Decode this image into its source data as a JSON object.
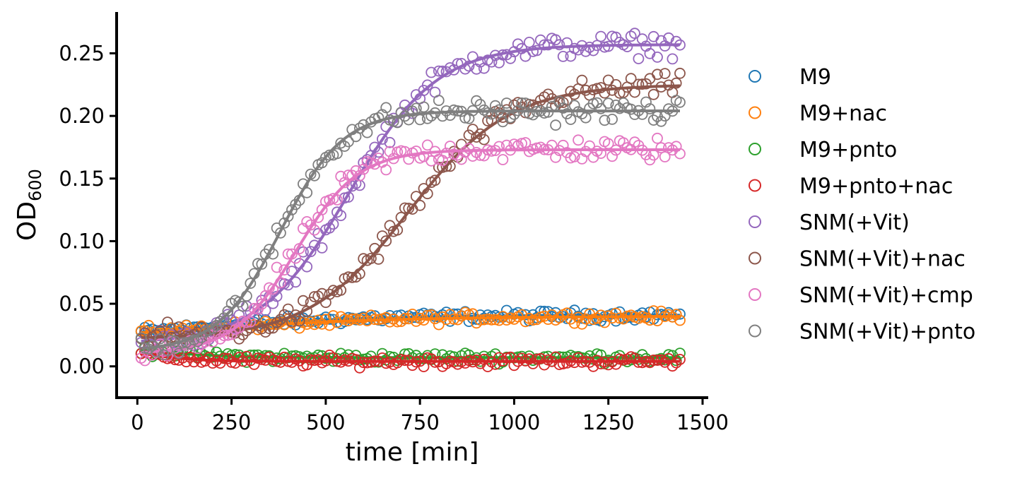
{
  "chart_data": {
    "type": "scatter",
    "xlabel": "time [min]",
    "ylabel_main": "OD",
    "ylabel_sub": "600",
    "xlim": [
      -55,
      1515
    ],
    "ylim": [
      -0.025,
      0.283
    ],
    "xticks": [
      0,
      250,
      500,
      750,
      1000,
      1250,
      1500
    ],
    "xtick_labels": [
      "0",
      "250",
      "500",
      "750",
      "1000",
      "1250",
      "1500"
    ],
    "yticks": [
      0.0,
      0.05,
      0.1,
      0.15,
      0.2,
      0.25
    ],
    "ytick_labels": [
      "0.00",
      "0.05",
      "0.10",
      "0.15",
      "0.20",
      "0.25"
    ],
    "grid": false,
    "legend_position": "right, outside plot",
    "marker": "open circle",
    "fit_line": "logistic curve per series",
    "series": [
      {
        "name": "M9",
        "color": "#1f77b4",
        "fit": {
          "y0": 0.018,
          "K": 0.041,
          "r": 0.004,
          "t0": 100
        }
      },
      {
        "name": "M9+nac",
        "color": "#ff7f0e",
        "fit": {
          "y0": 0.018,
          "K": 0.04,
          "r": 0.0035,
          "t0": 120
        }
      },
      {
        "name": "M9+pnto",
        "color": "#2ca02c",
        "fit": {
          "y0": 0.016,
          "K": 0.007,
          "r": 0.01,
          "t0": 60
        }
      },
      {
        "name": "M9+pnto+nac",
        "color": "#d62728",
        "fit": {
          "y0": 0.015,
          "K": 0.004,
          "r": 0.015,
          "t0": 30
        }
      },
      {
        "name": "SNM(+Vit)",
        "color": "#9467bd",
        "fit": {
          "y0": 0.018,
          "K": 0.257,
          "r": 0.0085,
          "t0": 560
        }
      },
      {
        "name": "SNM(+Vit)+nac",
        "color": "#8c564b",
        "fit": {
          "y0": 0.022,
          "K": 0.225,
          "r": 0.0075,
          "t0": 720
        }
      },
      {
        "name": "SNM(+Vit)+cmp",
        "color": "#e377c2",
        "fit": {
          "y0": 0.01,
          "K": 0.173,
          "r": 0.012,
          "t0": 420
        }
      },
      {
        "name": "SNM(+Vit)+pnto",
        "color": "#7f7f7f",
        "fit": {
          "y0": 0.012,
          "K": 0.204,
          "r": 0.012,
          "t0": 380
        }
      }
    ],
    "x_range_data": [
      10,
      1440
    ],
    "x_step": 10
  }
}
